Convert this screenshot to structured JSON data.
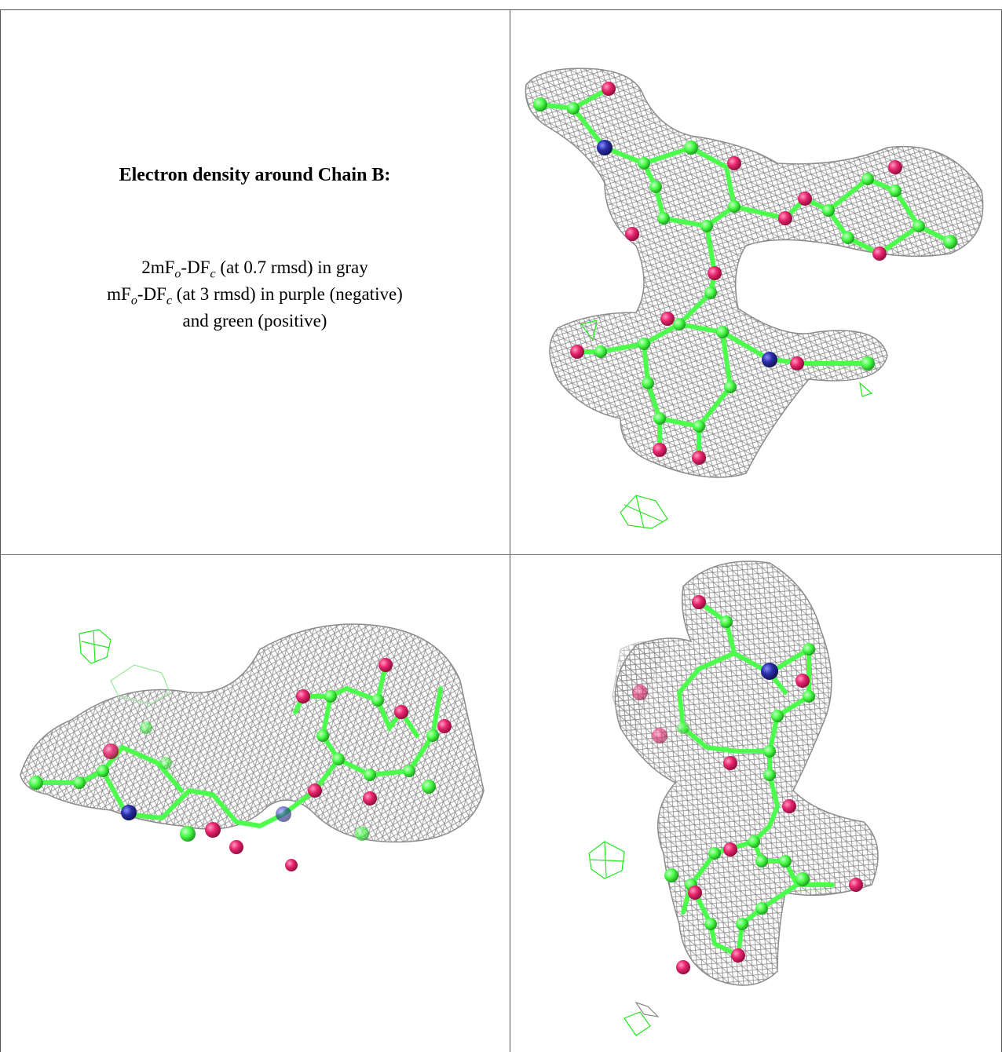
{
  "caption": {
    "title": "Electron density around Chain B:",
    "line1_pre": "2mF",
    "line1_sub_o": "o",
    "line1_mid": "-DF",
    "line1_sub_c": "c",
    "line1_post": " (at 0.7 rmsd) in gray",
    "line2_pre": "mF",
    "line2_sub_o": "o",
    "line2_mid": "-DF",
    "line2_sub_c": "c",
    "line2_post": " (at 3 rmsd) in purple (negative)",
    "line3": "and green (positive)"
  },
  "colors": {
    "mesh_gray": "#8c8c8c",
    "carbon_green": "#4cff4c",
    "oxygen_red": "#e8266e",
    "nitrogen_blue": "#2a2fa8",
    "positive_green": "#22e622"
  },
  "panels": [
    {
      "id": "top-right",
      "view": "view-1"
    },
    {
      "id": "bottom-left",
      "view": "view-2"
    },
    {
      "id": "bottom-right",
      "view": "view-3"
    }
  ]
}
